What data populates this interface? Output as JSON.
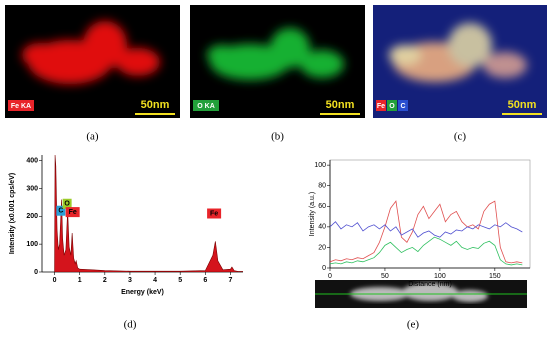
{
  "maps": [
    {
      "labels": [
        "Fe KA"
      ],
      "label_colors": [
        "#e8242a"
      ],
      "scale": "50nm",
      "caption": "(a)"
    },
    {
      "labels": [
        "O KA"
      ],
      "label_colors": [
        "#22a03a"
      ],
      "scale": "50nm",
      "caption": "(b)"
    },
    {
      "labels": [
        "Fe",
        "O",
        "C"
      ],
      "label_colors": [
        "#e8242a",
        "#22a03a",
        "#2a4fd0"
      ],
      "scale": "50nm",
      "caption": "(c)"
    }
  ],
  "chart_data": [
    {
      "type": "area",
      "caption": "(d)",
      "x_label": "Energy (keV)",
      "y_label": "Intensity (x0.001 cps/eV)",
      "x": [
        0,
        0.02,
        0.05,
        0.1,
        0.15,
        0.2,
        0.25,
        0.28,
        0.32,
        0.38,
        0.45,
        0.52,
        0.58,
        0.65,
        0.7,
        0.76,
        0.82,
        0.86,
        0.92,
        1.0,
        1.5,
        2.0,
        3,
        4,
        5,
        6.0,
        6.3,
        6.4,
        6.5,
        6.7,
        7.0,
        7.06,
        7.15,
        7.3,
        7.5
      ],
      "series": [
        {
          "color": "#d4141c",
          "values": [
            0,
            420,
            380,
            150,
            80,
            100,
            200,
            260,
            120,
            60,
            80,
            220,
            90,
            60,
            140,
            50,
            30,
            40,
            15,
            10,
            8,
            5,
            3,
            3,
            3,
            5,
            60,
            110,
            40,
            8,
            10,
            18,
            5,
            2,
            2
          ]
        }
      ],
      "annotations": [
        {
          "text": "C",
          "color": "#2a9fd6"
        },
        {
          "text": "O",
          "color": "#9ccc2a"
        },
        {
          "text": "Fe",
          "color": "#e8242a"
        },
        {
          "text": "Fe",
          "color": "#e8242a"
        }
      ],
      "xlim": [
        -0.5,
        7.5
      ],
      "ylim": [
        0,
        420
      ],
      "xticks": [
        0,
        1,
        2,
        3,
        4,
        5,
        6,
        7
      ],
      "yticks": [
        0,
        100,
        200,
        300,
        400
      ]
    },
    {
      "type": "line",
      "caption": "(e)",
      "x_label": "Distance (nm)",
      "y_label": "Intensity (a.u.)",
      "x": [
        0,
        5,
        10,
        15,
        20,
        25,
        30,
        35,
        40,
        45,
        50,
        55,
        60,
        65,
        70,
        75,
        80,
        85,
        90,
        95,
        100,
        105,
        110,
        115,
        120,
        125,
        130,
        135,
        140,
        145,
        150,
        155,
        160,
        165,
        170,
        175
      ],
      "series": [
        {
          "color": "#e05050",
          "values": [
            6,
            8,
            7,
            9,
            8,
            10,
            9,
            12,
            15,
            25,
            40,
            58,
            65,
            30,
            25,
            35,
            52,
            60,
            48,
            55,
            62,
            45,
            52,
            55,
            45,
            40,
            42,
            38,
            55,
            62,
            65,
            20,
            6,
            5,
            6,
            5
          ]
        },
        {
          "color": "#5050d0",
          "values": [
            40,
            45,
            38,
            42,
            40,
            44,
            36,
            40,
            42,
            38,
            42,
            36,
            40,
            32,
            35,
            38,
            30,
            34,
            36,
            32,
            30,
            35,
            33,
            37,
            36,
            40,
            38,
            42,
            40,
            38,
            42,
            40,
            44,
            40,
            38,
            35
          ]
        },
        {
          "color": "#30c060",
          "values": [
            4,
            5,
            4,
            6,
            5,
            7,
            6,
            8,
            10,
            15,
            22,
            25,
            20,
            15,
            18,
            20,
            16,
            22,
            26,
            30,
            28,
            25,
            22,
            26,
            20,
            18,
            20,
            19,
            24,
            26,
            22,
            8,
            4,
            3,
            4,
            3
          ]
        }
      ],
      "xlim": [
        0,
        182
      ],
      "ylim": [
        0,
        105
      ],
      "xticks": [
        0,
        50,
        100,
        150
      ],
      "yticks": [
        0,
        20,
        40,
        60,
        80,
        100
      ]
    }
  ]
}
